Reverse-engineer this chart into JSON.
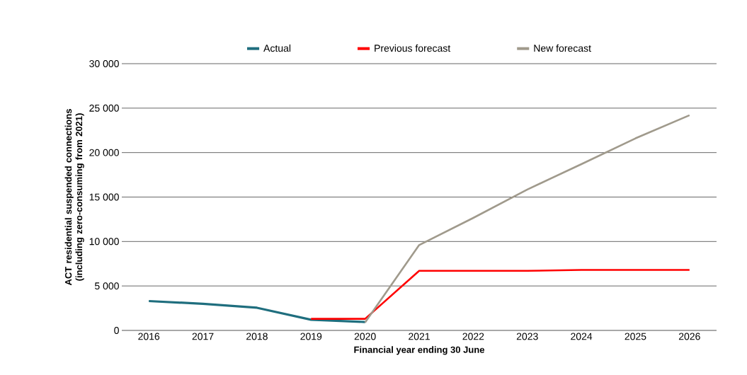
{
  "chart_data": {
    "type": "line",
    "xlabel": "Financial year ending 30 June",
    "ylabel": "ACT residential suspended connections (including zero-consuming from 2021)",
    "categories": [
      "2016",
      "2017",
      "2018",
      "2019",
      "2020",
      "2021",
      "2022",
      "2023",
      "2024",
      "2025",
      "2026"
    ],
    "series": [
      {
        "name": "Actual",
        "color": "#1f6e7e",
        "values": [
          3300,
          3000,
          2550,
          1200,
          950,
          null,
          null,
          null,
          null,
          null,
          null
        ]
      },
      {
        "name": "Previous forecast",
        "color": "#ff0000",
        "values": [
          null,
          null,
          null,
          1300,
          1300,
          6700,
          6700,
          6700,
          6800,
          6800,
          6800
        ]
      },
      {
        "name": "New forecast",
        "color": "#a09a8c",
        "values": [
          null,
          null,
          null,
          null,
          900,
          9600,
          12650,
          15850,
          18700,
          21600,
          24200
        ]
      }
    ],
    "ylim": [
      0,
      30000
    ],
    "yticks": [
      0,
      {
        "value": 5000,
        "label": "5 000"
      },
      {
        "value": 10000,
        "label": "10 000"
      },
      {
        "value": 15000,
        "label": "15 000"
      },
      {
        "value": 20000,
        "label": "20 000"
      },
      {
        "value": 25000,
        "label": "25 000"
      },
      {
        "value": 30000,
        "label": "30 000"
      }
    ],
    "grid": "y",
    "legend": "top"
  }
}
